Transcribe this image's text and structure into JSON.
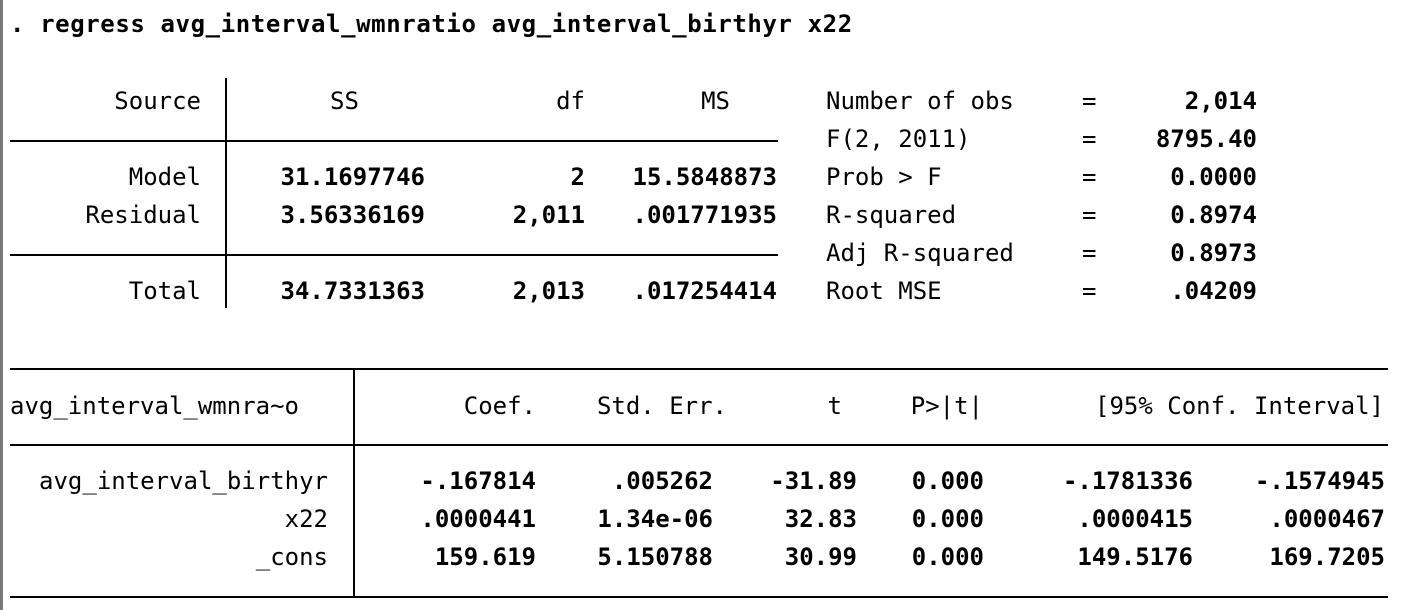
{
  "command": ". regress avg_interval_wmnratio avg_interval_birthyr x22",
  "anova": {
    "headers": {
      "source": "Source",
      "ss": "SS",
      "df": "df",
      "ms": "MS"
    },
    "rows": [
      {
        "source": "Model",
        "ss": "31.1697746",
        "df": "2",
        "ms": "15.5848873"
      },
      {
        "source": "Residual",
        "ss": "3.56336169",
        "df": "2,011",
        "ms": ".001771935"
      },
      {
        "source": "Total",
        "ss": "34.7331363",
        "df": "2,013",
        "ms": ".017254414"
      }
    ]
  },
  "stats": [
    {
      "label": "Number of obs",
      "eq": "=",
      "value": "2,014"
    },
    {
      "label": "F(2, 2011)",
      "eq": "=",
      "value": "8795.40"
    },
    {
      "label": "Prob > F",
      "eq": "=",
      "value": "0.0000"
    },
    {
      "label": "R-squared",
      "eq": "=",
      "value": "0.8974"
    },
    {
      "label": "Adj R-squared",
      "eq": "=",
      "value": "0.8973"
    },
    {
      "label": "Root MSE",
      "eq": "=",
      "value": ".04209"
    }
  ],
  "coef": {
    "headers": {
      "depvar": "avg_interval_wmnra~o",
      "coef": "Coef.",
      "se": "Std. Err.",
      "t": "t",
      "p": "P>|t|",
      "ci": "[95% Conf. Interval]"
    },
    "rows": [
      {
        "name": "avg_interval_birthyr",
        "coef": "-.167814",
        "se": ".005262",
        "t": "-31.89",
        "p": "0.000",
        "lo": "-.1781336",
        "hi": "-.1574945"
      },
      {
        "name": "x22",
        "coef": ".0000441",
        "se": "1.34e-06",
        "t": "32.83",
        "p": "0.000",
        "lo": ".0000415",
        "hi": ".0000467"
      },
      {
        "name": "_cons",
        "coef": "159.619",
        "se": "5.150788",
        "t": "30.99",
        "p": "0.000",
        "lo": "149.5176",
        "hi": "169.7205"
      }
    ]
  }
}
